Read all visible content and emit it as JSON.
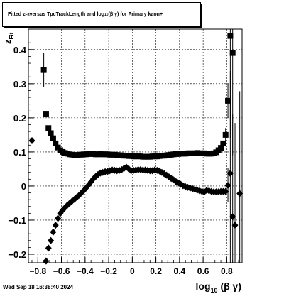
{
  "chart_data": {
    "type": "scatter",
    "title_prefix": "Fitted  z",
    "title_sub": "Fit",
    "title_mid": "  versus TpcTrackLength and log",
    "title_sub2": "10",
    "title_suffix": " (β  γ) for Primary kaon+",
    "xlabel_main": "log",
    "xlabel_sub": "10",
    "xlabel_rest": " (β γ)",
    "ylabel_main": "z",
    "ylabel_sub": "Fit",
    "xlim": [
      -0.88,
      0.93
    ],
    "ylim": [
      -0.225,
      0.46
    ],
    "grid": true,
    "xticks": [
      -0.8,
      -0.6,
      -0.4,
      -0.2,
      0,
      0.2,
      0.4,
      0.6,
      0.8
    ],
    "xtick_labels": [
      "−0.8",
      "−0.6",
      "−0.4",
      "−0.2",
      "0",
      "0.2",
      "0.4",
      "0.6",
      "0.8"
    ],
    "yticks": [
      -0.2,
      -0.1,
      0,
      0.1,
      0.2,
      0.3,
      0.4
    ],
    "ytick_labels": [
      "−0.2",
      "−0.1",
      "0",
      "0.1",
      "0.2",
      "0.3",
      "0.4"
    ],
    "series": [
      {
        "marker": "square",
        "x": [
          -0.75,
          -0.73,
          -0.71,
          -0.69,
          -0.67,
          -0.65,
          -0.63,
          -0.61,
          -0.59,
          -0.57,
          -0.55,
          -0.53,
          -0.51,
          -0.49,
          -0.47,
          -0.45,
          -0.43,
          -0.41,
          -0.39,
          -0.37,
          -0.35,
          -0.33,
          -0.31,
          -0.29,
          -0.27,
          -0.25,
          -0.23,
          -0.21,
          -0.19,
          -0.17,
          -0.15,
          -0.13,
          -0.11,
          -0.09,
          -0.07,
          -0.05,
          -0.03,
          -0.01,
          0.01,
          0.03,
          0.05,
          0.07,
          0.09,
          0.11,
          0.13,
          0.15,
          0.17,
          0.19,
          0.21,
          0.23,
          0.25,
          0.27,
          0.29,
          0.31,
          0.33,
          0.35,
          0.37,
          0.39,
          0.41,
          0.43,
          0.45,
          0.47,
          0.49,
          0.51,
          0.53,
          0.55,
          0.57,
          0.59,
          0.61,
          0.63,
          0.65,
          0.67,
          0.69,
          0.71,
          0.73,
          0.75,
          0.77,
          0.79,
          0.81,
          0.83,
          0.85
        ],
        "y": [
          0.34,
          0.21,
          0.17,
          0.155,
          0.14,
          0.125,
          0.113,
          0.105,
          0.1,
          0.097,
          0.095,
          0.093,
          0.092,
          0.091,
          0.091,
          0.092,
          0.092,
          0.093,
          0.093,
          0.094,
          0.094,
          0.094,
          0.093,
          0.093,
          0.094,
          0.093,
          0.093,
          0.093,
          0.092,
          0.092,
          0.092,
          0.091,
          0.09,
          0.09,
          0.089,
          0.089,
          0.088,
          0.088,
          0.087,
          0.087,
          0.087,
          0.087,
          0.086,
          0.086,
          0.086,
          0.086,
          0.087,
          0.087,
          0.087,
          0.088,
          0.089,
          0.089,
          0.09,
          0.091,
          0.092,
          0.093,
          0.094,
          0.094,
          0.095,
          0.095,
          0.095,
          0.096,
          0.096,
          0.096,
          0.096,
          0.097,
          0.096,
          0.096,
          0.096,
          0.095,
          0.095,
          0.095,
          0.096,
          0.099,
          0.105,
          0.112,
          0.125,
          0.15,
          0.25,
          0.44,
          0.39
        ],
        "err": [
          0.05,
          0.005,
          0.003,
          0.003,
          0.003,
          0.002,
          0.002,
          0.002,
          0.002,
          0.002,
          0.002,
          0.002,
          0.002,
          0.002,
          0.002,
          0.002,
          0.002,
          0.002,
          0.002,
          0.002,
          0.002,
          0.002,
          0.002,
          0.002,
          0.002,
          0.002,
          0.002,
          0.002,
          0.002,
          0.002,
          0.002,
          0.002,
          0.002,
          0.002,
          0.002,
          0.002,
          0.002,
          0.002,
          0.002,
          0.002,
          0.002,
          0.002,
          0.002,
          0.002,
          0.002,
          0.002,
          0.002,
          0.002,
          0.002,
          0.002,
          0.002,
          0.002,
          0.002,
          0.002,
          0.002,
          0.002,
          0.002,
          0.002,
          0.002,
          0.002,
          0.002,
          0.002,
          0.002,
          0.002,
          0.002,
          0.002,
          0.002,
          0.002,
          0.002,
          0.002,
          0.002,
          0.002,
          0.002,
          0.002,
          0.003,
          0.004,
          0.006,
          0.02,
          0.05,
          0.3,
          0.3
        ]
      },
      {
        "marker": "diamond",
        "x": [
          -0.85,
          -0.73,
          -0.71,
          -0.69,
          -0.67,
          -0.65,
          -0.63,
          -0.61,
          -0.59,
          -0.57,
          -0.55,
          -0.53,
          -0.51,
          -0.49,
          -0.47,
          -0.45,
          -0.43,
          -0.41,
          -0.39,
          -0.37,
          -0.35,
          -0.33,
          -0.31,
          -0.29,
          -0.27,
          -0.25,
          -0.23,
          -0.21,
          -0.19,
          -0.17,
          -0.15,
          -0.13,
          -0.11,
          -0.09,
          -0.07,
          -0.05,
          -0.03,
          -0.01,
          0.01,
          0.03,
          0.05,
          0.07,
          0.09,
          0.11,
          0.13,
          0.15,
          0.17,
          0.19,
          0.21,
          0.23,
          0.25,
          0.27,
          0.29,
          0.31,
          0.33,
          0.35,
          0.37,
          0.39,
          0.41,
          0.43,
          0.45,
          0.47,
          0.49,
          0.51,
          0.53,
          0.55,
          0.57,
          0.59,
          0.61,
          0.63,
          0.65,
          0.67,
          0.69,
          0.71,
          0.73,
          0.75,
          0.77,
          0.79,
          0.81,
          0.83,
          0.85,
          0.87,
          0.91
        ],
        "y": [
          0.133,
          -0.22,
          -0.182,
          -0.16,
          -0.135,
          -0.115,
          -0.095,
          -0.08,
          -0.071,
          -0.063,
          -0.056,
          -0.05,
          -0.044,
          -0.039,
          -0.033,
          -0.027,
          -0.02,
          -0.013,
          -0.005,
          0.003,
          0.012,
          0.021,
          0.028,
          0.034,
          0.038,
          0.04,
          0.042,
          0.043,
          0.045,
          0.047,
          0.046,
          0.045,
          0.046,
          0.048,
          0.052,
          0.055,
          0.05,
          0.045,
          0.046,
          0.047,
          0.048,
          0.048,
          0.047,
          0.047,
          0.046,
          0.045,
          0.045,
          0.047,
          0.046,
          0.044,
          0.04,
          0.036,
          0.032,
          0.027,
          0.022,
          0.018,
          0.013,
          0.009,
          0.005,
          0.001,
          -0.002,
          -0.004,
          -0.006,
          -0.008,
          -0.01,
          -0.012,
          -0.014,
          -0.016,
          -0.017,
          -0.013,
          -0.014,
          -0.016,
          -0.017,
          -0.017,
          -0.017,
          -0.016,
          -0.016,
          -0.016,
          0.002,
          0.037,
          -0.09,
          -0.115,
          -0.022
        ],
        "err": [
          0.003,
          0.01,
          0.004,
          0.003,
          0.003,
          0.002,
          0.002,
          0.002,
          0.002,
          0.002,
          0.002,
          0.002,
          0.002,
          0.002,
          0.002,
          0.002,
          0.002,
          0.002,
          0.002,
          0.002,
          0.002,
          0.002,
          0.002,
          0.002,
          0.002,
          0.002,
          0.002,
          0.002,
          0.002,
          0.002,
          0.002,
          0.002,
          0.002,
          0.002,
          0.002,
          0.002,
          0.002,
          0.002,
          0.002,
          0.002,
          0.002,
          0.002,
          0.002,
          0.002,
          0.002,
          0.002,
          0.002,
          0.002,
          0.002,
          0.002,
          0.002,
          0.002,
          0.002,
          0.002,
          0.002,
          0.002,
          0.002,
          0.002,
          0.002,
          0.002,
          0.002,
          0.002,
          0.002,
          0.002,
          0.002,
          0.002,
          0.002,
          0.002,
          0.002,
          0.002,
          0.002,
          0.002,
          0.002,
          0.002,
          0.003,
          0.004,
          0.005,
          0.01,
          0.05,
          0.3,
          0.3,
          0.3,
          0.3
        ]
      }
    ]
  },
  "footer": {
    "timestamp": "Wed Sep 18 16:38:40 2024"
  }
}
